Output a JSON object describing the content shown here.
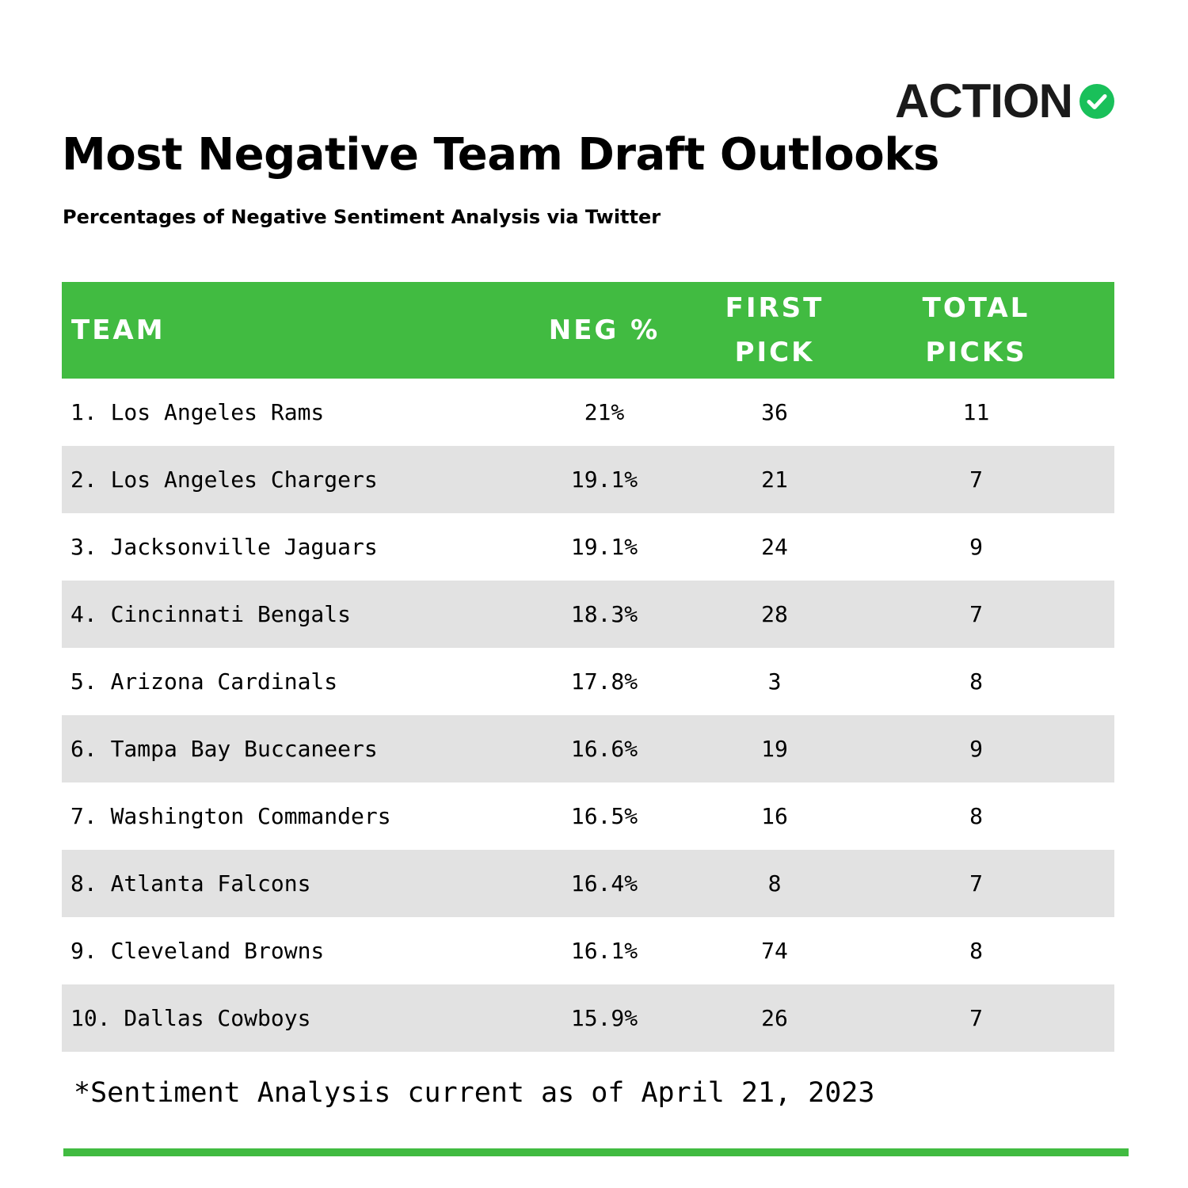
{
  "brand": {
    "name": "ACTION",
    "check_icon": "check-circle-icon",
    "accent_color": "#19c05a"
  },
  "title": "Most Negative Team Draft Outlooks",
  "subtitle": "Percentages of Negative Sentiment Analysis via Twitter",
  "colors": {
    "header_green": "#41bb41",
    "stripe_gray": "#e2e2e2"
  },
  "chart_data": {
    "type": "table",
    "columns": [
      {
        "key": "team",
        "lines": [
          "TEAM"
        ]
      },
      {
        "key": "neg",
        "lines": [
          "NEG %"
        ]
      },
      {
        "key": "first",
        "lines": [
          "FIRST",
          "PICK"
        ]
      },
      {
        "key": "total",
        "lines": [
          "TOTAL",
          "PICKS"
        ]
      }
    ],
    "rows": [
      {
        "team": "1. Los Angeles Rams",
        "neg": "21%",
        "first": "36",
        "total": "11"
      },
      {
        "team": "2. Los Angeles Chargers",
        "neg": "19.1%",
        "first": "21",
        "total": "7"
      },
      {
        "team": "3. Jacksonville Jaguars",
        "neg": "19.1%",
        "first": "24",
        "total": "9"
      },
      {
        "team": "4. Cincinnati Bengals",
        "neg": "18.3%",
        "first": "28",
        "total": "7"
      },
      {
        "team": "5. Arizona Cardinals",
        "neg": "17.8%",
        "first": "3",
        "total": "8"
      },
      {
        "team": "6. Tampa Bay Buccaneers",
        "neg": "16.6%",
        "first": "19",
        "total": "9"
      },
      {
        "team": "7. Washington Commanders",
        "neg": "16.5%",
        "first": "16",
        "total": "8"
      },
      {
        "team": "8. Atlanta Falcons",
        "neg": "16.4%",
        "first": "8",
        "total": "7"
      },
      {
        "team": "9. Cleveland Browns",
        "neg": "16.1%",
        "first": "74",
        "total": "8"
      },
      {
        "team": "10. Dallas Cowboys",
        "neg": "15.9%",
        "first": "26",
        "total": "7"
      }
    ]
  },
  "footnote": "*Sentiment Analysis current as of April 21, 2023"
}
